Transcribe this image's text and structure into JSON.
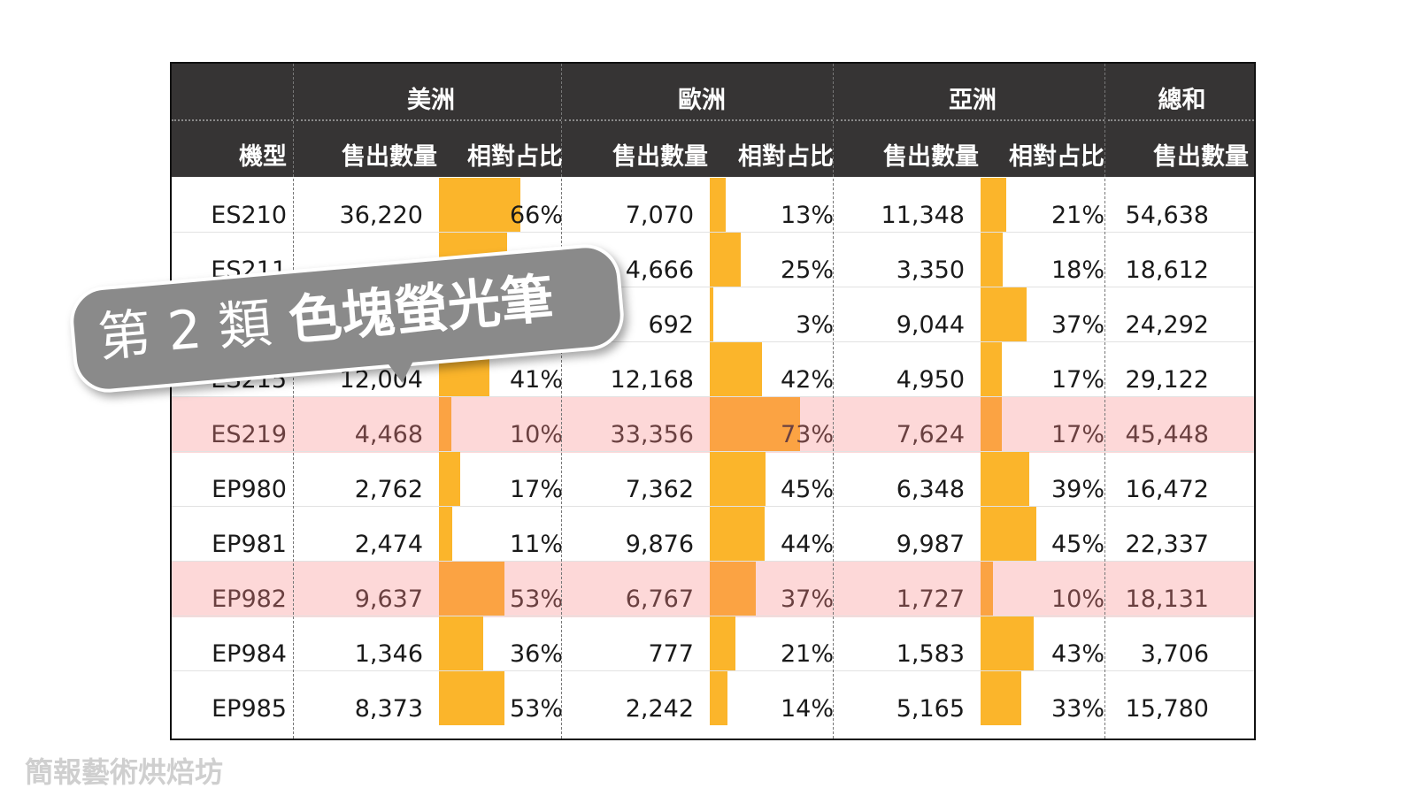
{
  "table": {
    "groups": [
      "美洲",
      "歐洲",
      "亞洲",
      "總和"
    ],
    "subheaders": [
      "機型",
      "售出數量",
      "相對占比",
      "售出數量",
      "相對占比",
      "售出數量",
      "相對占比",
      "售出數量"
    ],
    "rows": [
      {
        "model": "ES210",
        "americas_qty": "36,220",
        "americas_pct": "66%",
        "europe_qty": "7,070",
        "europe_pct": "13%",
        "asia_qty": "11,348",
        "asia_pct": "21%",
        "total_qty": "54,638",
        "highlight": false
      },
      {
        "model": "ES211",
        "americas_qty": "",
        "americas_pct": "",
        "europe_qty": "4,666",
        "europe_pct": "25%",
        "asia_qty": "3,350",
        "asia_pct": "18%",
        "total_qty": "18,612",
        "highlight": false
      },
      {
        "model": "",
        "americas_qty": "",
        "americas_pct": "",
        "europe_qty": "692",
        "europe_pct": "3%",
        "asia_qty": "9,044",
        "asia_pct": "37%",
        "total_qty": "24,292",
        "highlight": false
      },
      {
        "model": "ES215",
        "americas_qty": "12,004",
        "americas_pct": "41%",
        "europe_qty": "12,168",
        "europe_pct": "42%",
        "asia_qty": "4,950",
        "asia_pct": "17%",
        "total_qty": "29,122",
        "highlight": false
      },
      {
        "model": "ES219",
        "americas_qty": "4,468",
        "americas_pct": "10%",
        "europe_qty": "33,356",
        "europe_pct": "73%",
        "asia_qty": "7,624",
        "asia_pct": "17%",
        "total_qty": "45,448",
        "highlight": true
      },
      {
        "model": "EP980",
        "americas_qty": "2,762",
        "americas_pct": "17%",
        "europe_qty": "7,362",
        "europe_pct": "45%",
        "asia_qty": "6,348",
        "asia_pct": "39%",
        "total_qty": "16,472",
        "highlight": false
      },
      {
        "model": "EP981",
        "americas_qty": "2,474",
        "americas_pct": "11%",
        "europe_qty": "9,876",
        "europe_pct": "44%",
        "asia_qty": "9,987",
        "asia_pct": "45%",
        "total_qty": "22,337",
        "highlight": false
      },
      {
        "model": "EP982",
        "americas_qty": "9,637",
        "americas_pct": "53%",
        "europe_qty": "6,767",
        "europe_pct": "37%",
        "asia_qty": "1,727",
        "asia_pct": "10%",
        "total_qty": "18,131",
        "highlight": true
      },
      {
        "model": "EP984",
        "americas_qty": "1,346",
        "americas_pct": "36%",
        "europe_qty": "777",
        "europe_pct": "21%",
        "asia_qty": "1,583",
        "asia_pct": "43%",
        "total_qty": "3,706",
        "highlight": false
      },
      {
        "model": "EP985",
        "americas_qty": "8,373",
        "americas_pct": "53%",
        "europe_qty": "2,242",
        "europe_pct": "14%",
        "asia_qty": "5,165",
        "asia_pct": "33%",
        "total_qty": "15,780",
        "highlight": false
      }
    ],
    "bar_fractions": [
      [
        0.66,
        0.13,
        0.21
      ],
      [
        0.55,
        0.25,
        0.18
      ],
      [
        0.6,
        0.03,
        0.37
      ],
      [
        0.41,
        0.42,
        0.17
      ],
      [
        0.1,
        0.73,
        0.17
      ],
      [
        0.17,
        0.45,
        0.39
      ],
      [
        0.11,
        0.44,
        0.45
      ],
      [
        0.53,
        0.37,
        0.1
      ],
      [
        0.36,
        0.21,
        0.43
      ],
      [
        0.53,
        0.14,
        0.33
      ]
    ]
  },
  "colors": {
    "header_bg": "#363434",
    "bar": "#fbb52b",
    "bar_highlight": "#fba343",
    "row_highlight": "#fdd8d8"
  },
  "callout": {
    "light_text": "第 2 類",
    "bold_text": "色塊螢光筆"
  },
  "watermark": "簡報藝術烘焙坊"
}
